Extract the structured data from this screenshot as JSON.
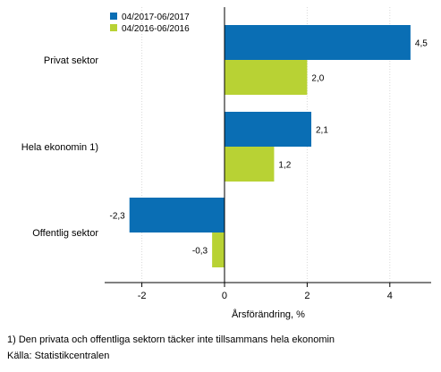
{
  "chart_data": {
    "type": "bar",
    "orientation": "horizontal",
    "categories": [
      "Privat sektor",
      "Hela ekonomin 1)",
      "Offentlig sektor"
    ],
    "series": [
      {
        "name": "04/2017-06/2017",
        "values": [
          4.5,
          2.1,
          -2.3
        ],
        "labels": [
          "4,5",
          "2,1",
          "-2,3"
        ],
        "color": "#0a6eb4"
      },
      {
        "name": "04/2016-06/2016",
        "values": [
          2.0,
          1.2,
          -0.3
        ],
        "labels": [
          "2,0",
          "1,2",
          "-0,3"
        ],
        "color": "#b8d234"
      }
    ],
    "xlabel": "Årsförändring, %",
    "xlim": [
      -2.9,
      5.0
    ],
    "xticks": [
      {
        "value": -2,
        "label": "-2"
      },
      {
        "value": 0,
        "label": "0"
      },
      {
        "value": 2,
        "label": "2"
      },
      {
        "value": 4,
        "label": "4"
      }
    ],
    "grid": true,
    "legend": "top-left"
  },
  "footnotes": {
    "note": "1) Den privata och offentliga sektorn täcker inte tillsammans hela ekonomin",
    "source": "Källa: Statistikcentralen"
  }
}
